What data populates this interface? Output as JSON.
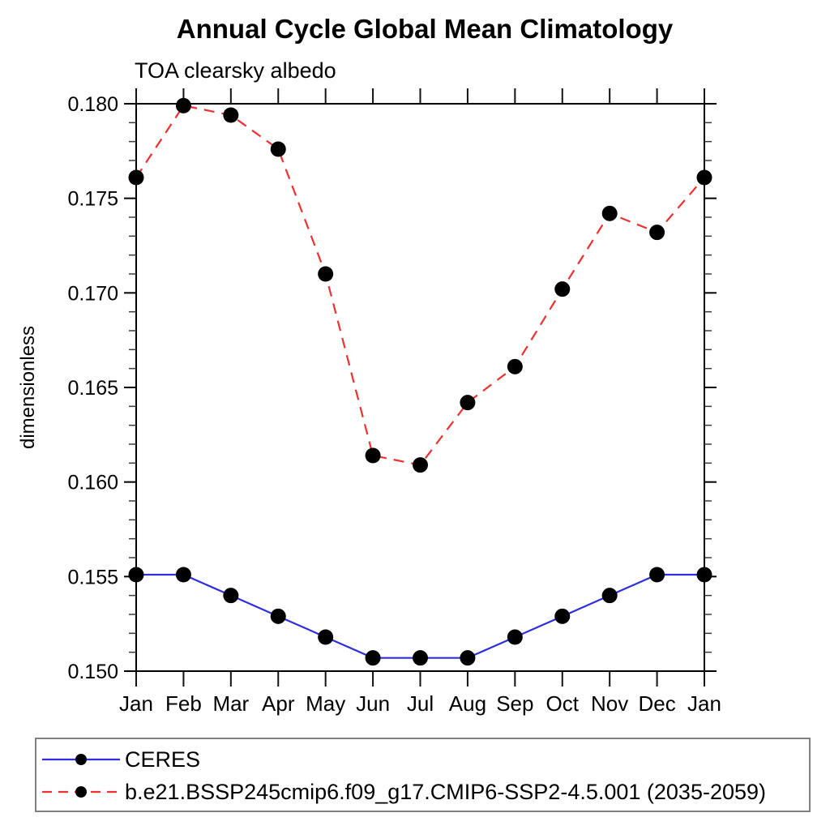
{
  "title": "Annual Cycle Global Mean Climatology",
  "subtitle": "TOA clearsky albedo",
  "y_axis_label": "dimensionless",
  "chart_data": {
    "type": "line",
    "categories": [
      "Jan",
      "Feb",
      "Mar",
      "Apr",
      "May",
      "Jun",
      "Jul",
      "Aug",
      "Sep",
      "Oct",
      "Nov",
      "Dec",
      "Jan"
    ],
    "series": [
      {
        "name": "CERES",
        "color": "#2e2ee0",
        "line_style": "solid",
        "marker": "filled-circle",
        "marker_color": "#000000",
        "values": [
          0.1551,
          0.1551,
          0.154,
          0.1529,
          0.1518,
          0.1507,
          0.1507,
          0.1507,
          0.1518,
          0.1529,
          0.154,
          0.1551,
          0.1551
        ]
      },
      {
        "name": "b.e21.BSSP245cmip6.f09_g17.CMIP6-SSP2-4.5.001 (2035-2059)",
        "color": "#ee3030",
        "line_style": "dashed",
        "marker": "filled-circle",
        "marker_color": "#000000",
        "values": [
          0.1761,
          0.1799,
          0.1794,
          0.1776,
          0.171,
          0.1614,
          0.1609,
          0.1642,
          0.1661,
          0.1702,
          0.1742,
          0.1732,
          0.1761
        ]
      }
    ],
    "xlabel": "",
    "ylabel": "dimensionless",
    "ylim": [
      0.15,
      0.18
    ],
    "yticks": [
      0.15,
      0.155,
      0.16,
      0.165,
      0.17,
      0.175,
      0.18
    ],
    "ytick_labels": [
      "0.150",
      "0.155",
      "0.160",
      "0.165",
      "0.170",
      "0.175",
      "0.180"
    ],
    "minor_tick_step": 0.001,
    "grid": false,
    "legend_position": "bottom-left"
  }
}
